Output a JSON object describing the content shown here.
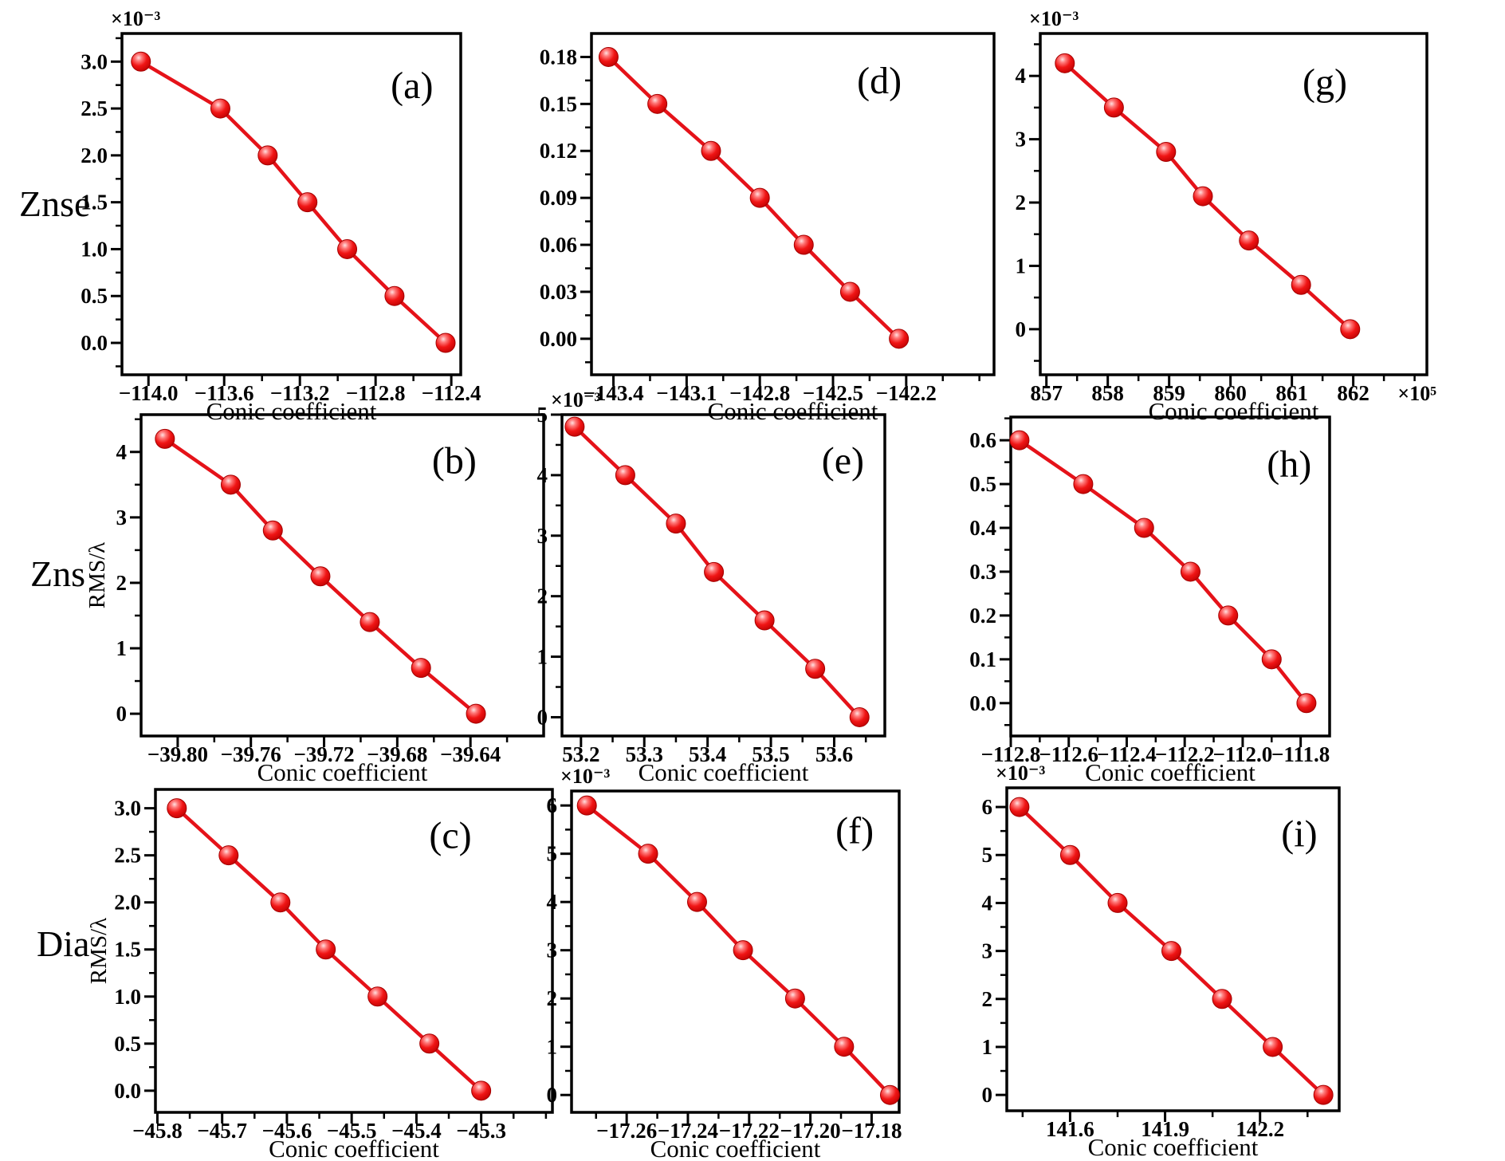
{
  "figure": {
    "background": "#ffffff",
    "accent_color": "#e51219",
    "row_labels": [
      "Znse",
      "Zns",
      "Dia"
    ]
  },
  "chart_data": [
    {
      "id": "a",
      "type": "line",
      "marker": "sphere",
      "grid": false,
      "panel_label": "(a)",
      "group": "Znse",
      "xlabel": "Conic coefficient",
      "ylabel": null,
      "y_multiplier": "×10⁻³",
      "x_multiplier": null,
      "x_ticks": [
        -114.0,
        -113.6,
        -113.2,
        -112.8,
        -112.4
      ],
      "x_tick_labels": [
        "−114.0",
        "−113.6",
        "−113.2",
        "−112.8",
        "−112.4"
      ],
      "y_ticks": [
        0.0,
        0.5,
        1.0,
        1.5,
        2.0,
        2.5,
        3.0
      ],
      "y_tick_labels": [
        "0.0",
        "0.5",
        "1.0",
        "1.5",
        "2.0",
        "2.5",
        "3.0"
      ],
      "xlim": [
        -114.14,
        -112.35
      ],
      "ylim": [
        -0.34,
        3.3
      ],
      "x": [
        -114.04,
        -113.62,
        -113.37,
        -113.16,
        -112.95,
        -112.7,
        -112.43
      ],
      "y": [
        3.0,
        2.5,
        2.0,
        1.5,
        1.0,
        0.5,
        0.0
      ]
    },
    {
      "id": "d",
      "type": "line",
      "marker": "sphere",
      "grid": false,
      "panel_label": "(d)",
      "group": "Znse",
      "xlabel": "Conic coefficient",
      "ylabel": null,
      "y_multiplier": null,
      "x_multiplier": null,
      "x_ticks": [
        -143.4,
        -143.1,
        -142.8,
        -142.5,
        -142.2
      ],
      "x_tick_labels": [
        "−143.4",
        "−143.1",
        "−142.8",
        "−142.5",
        "−142.2"
      ],
      "y_ticks": [
        0.0,
        0.03,
        0.06,
        0.09,
        0.12,
        0.15,
        0.18
      ],
      "y_tick_labels": [
        "0.00",
        "0.03",
        "0.06",
        "0.09",
        "0.12",
        "0.15",
        "0.18"
      ],
      "xlim": [
        -143.49,
        -141.84
      ],
      "ylim": [
        -0.023,
        0.195
      ],
      "x": [
        -143.42,
        -143.22,
        -143.0,
        -142.8,
        -142.62,
        -142.43,
        -142.23
      ],
      "y": [
        0.18,
        0.15,
        0.12,
        0.09,
        0.06,
        0.03,
        0.0
      ]
    },
    {
      "id": "g",
      "type": "line",
      "marker": "sphere",
      "grid": false,
      "panel_label": "(g)",
      "group": "Znse",
      "xlabel": "Conic coefficient",
      "ylabel": null,
      "y_multiplier": "×10⁻³",
      "x_multiplier": "×10⁵",
      "x_ticks": [
        857,
        858,
        859,
        860,
        861,
        862
      ],
      "x_tick_labels": [
        "857",
        "858",
        "859",
        "860",
        "861",
        "862"
      ],
      "y_ticks": [
        0,
        1,
        2,
        3,
        4
      ],
      "y_tick_labels": [
        "0",
        "1",
        "2",
        "3",
        "4"
      ],
      "xlim": [
        856.9,
        863.2
      ],
      "ylim": [
        -0.72,
        4.67
      ],
      "x": [
        857.3,
        858.1,
        858.95,
        859.55,
        860.3,
        861.15,
        861.95
      ],
      "y": [
        4.2,
        3.5,
        2.8,
        2.1,
        1.4,
        0.7,
        0.0
      ]
    },
    {
      "id": "b",
      "type": "line",
      "marker": "sphere",
      "grid": false,
      "panel_label": "(b)",
      "group": "Zns",
      "xlabel": "Conic coefficient",
      "ylabel": "RMS/λ",
      "y_multiplier": null,
      "x_multiplier": null,
      "x_ticks": [
        -39.8,
        -39.76,
        -39.72,
        -39.68,
        -39.64
      ],
      "x_tick_labels": [
        "−39.80",
        "−39.76",
        "−39.72",
        "−39.68",
        "−39.64"
      ],
      "y_ticks": [
        0,
        1,
        2,
        3,
        4
      ],
      "y_tick_labels": [
        "0",
        "1",
        "2",
        "3",
        "4"
      ],
      "xlim": [
        -39.82,
        -39.6
      ],
      "ylim": [
        -0.34,
        4.57
      ],
      "x": [
        -39.807,
        -39.771,
        -39.748,
        -39.722,
        -39.695,
        -39.667,
        -39.637
      ],
      "y": [
        4.2,
        3.5,
        2.8,
        2.1,
        1.4,
        0.7,
        0.0
      ]
    },
    {
      "id": "e",
      "type": "line",
      "marker": "sphere",
      "grid": false,
      "panel_label": "(e)",
      "group": "Zns",
      "xlabel": "Conic coefficient",
      "ylabel": null,
      "y_multiplier": "×10⁻³",
      "x_multiplier": null,
      "x_ticks": [
        53.2,
        53.3,
        53.4,
        53.5,
        53.6
      ],
      "x_tick_labels": [
        "53.2",
        "53.3",
        "53.4",
        "53.5",
        "53.6"
      ],
      "y_ticks": [
        0,
        1,
        2,
        3,
        4,
        5
      ],
      "y_tick_labels": [
        "0",
        "1",
        "2",
        "3",
        "4",
        "5"
      ],
      "xlim": [
        53.17,
        53.68
      ],
      "ylim": [
        -0.31,
        5.0
      ],
      "x": [
        53.19,
        53.27,
        53.35,
        53.41,
        53.49,
        53.57,
        53.64
      ],
      "y": [
        4.8,
        4.0,
        3.2,
        2.4,
        1.6,
        0.8,
        0.0
      ]
    },
    {
      "id": "h",
      "type": "line",
      "marker": "sphere",
      "grid": false,
      "panel_label": "(h)",
      "group": "Zns",
      "xlabel": "Conic coefficient",
      "ylabel": null,
      "y_multiplier": null,
      "x_multiplier": null,
      "x_ticks": [
        -112.8,
        -112.6,
        -112.4,
        -112.2,
        -112.0,
        -111.8
      ],
      "x_tick_labels": [
        "−112.8",
        "−112.6",
        "−112.4",
        "−112.2",
        "−112.0",
        "−111.8"
      ],
      "y_ticks": [
        0.0,
        0.1,
        0.2,
        0.3,
        0.4,
        0.5,
        0.6
      ],
      "y_tick_labels": [
        "0.0",
        "0.1",
        "0.2",
        "0.3",
        "0.4",
        "0.5",
        "0.6"
      ],
      "xlim": [
        -112.8,
        -111.7
      ],
      "ylim": [
        -0.075,
        0.653
      ],
      "x": [
        -112.77,
        -112.55,
        -112.34,
        -112.18,
        -112.05,
        -111.9,
        -111.78
      ],
      "y": [
        0.6,
        0.5,
        0.4,
        0.3,
        0.2,
        0.1,
        0.0
      ]
    },
    {
      "id": "c",
      "type": "line",
      "marker": "sphere",
      "grid": false,
      "panel_label": "(c)",
      "group": "Dia",
      "xlabel": "Conic coefficient",
      "ylabel": "RMS/λ",
      "y_multiplier": null,
      "x_multiplier": null,
      "x_ticks": [
        -45.8,
        -45.7,
        -45.6,
        -45.5,
        -45.4,
        -45.3
      ],
      "x_tick_labels": [
        "−45.8",
        "−45.7",
        "−45.6",
        "−45.5",
        "−45.4",
        "−45.3"
      ],
      "y_ticks": [
        0.0,
        0.5,
        1.0,
        1.5,
        2.0,
        2.5,
        3.0
      ],
      "y_tick_labels": [
        "0.0",
        "0.5",
        "1.0",
        "1.5",
        "2.0",
        "2.5",
        "3.0"
      ],
      "xlim": [
        -45.803,
        -45.19
      ],
      "ylim": [
        -0.23,
        3.2
      ],
      "x": [
        -45.77,
        -45.69,
        -45.61,
        -45.54,
        -45.46,
        -45.38,
        -45.3
      ],
      "y": [
        3.0,
        2.5,
        2.0,
        1.5,
        1.0,
        0.5,
        0.0
      ]
    },
    {
      "id": "f",
      "type": "line",
      "marker": "sphere",
      "grid": false,
      "panel_label": "(f)",
      "group": "Dia",
      "xlabel": "Conic coefficient",
      "ylabel": null,
      "y_multiplier": "×10⁻³",
      "x_multiplier": null,
      "x_ticks": [
        -17.26,
        -17.24,
        -17.22,
        -17.2,
        -17.18
      ],
      "x_tick_labels": [
        "−17.26",
        "−17.24",
        "−17.22",
        "−17.20",
        "−17.18"
      ],
      "y_ticks": [
        0,
        1,
        2,
        3,
        4,
        5,
        6
      ],
      "y_tick_labels": [
        "0",
        "1",
        "2",
        "3",
        "4",
        "5",
        "6"
      ],
      "xlim": [
        -17.278,
        -17.171
      ],
      "ylim": [
        -0.36,
        6.3
      ],
      "x": [
        -17.273,
        -17.253,
        -17.237,
        -17.222,
        -17.205,
        -17.189,
        -17.174
      ],
      "y": [
        6,
        5,
        4,
        3,
        2,
        1,
        0
      ]
    },
    {
      "id": "i",
      "type": "line",
      "marker": "sphere",
      "grid": false,
      "panel_label": "(i)",
      "group": "Dia",
      "xlabel": "Conic coefficient",
      "ylabel": null,
      "y_multiplier": "×10⁻³",
      "x_multiplier": null,
      "x_ticks": [
        141.6,
        141.9,
        142.2
      ],
      "x_tick_labels": [
        "141.6",
        "141.9",
        "142.2"
      ],
      "y_ticks": [
        0,
        1,
        2,
        3,
        4,
        5,
        6
      ],
      "y_tick_labels": [
        "0",
        "1",
        "2",
        "3",
        "4",
        "5",
        "6"
      ],
      "xlim": [
        141.4,
        142.45
      ],
      "ylim": [
        -0.33,
        6.4
      ],
      "x": [
        141.44,
        141.6,
        141.75,
        141.92,
        142.08,
        142.24,
        142.4
      ],
      "y": [
        6,
        5,
        4,
        3,
        2,
        1,
        0
      ]
    }
  ]
}
